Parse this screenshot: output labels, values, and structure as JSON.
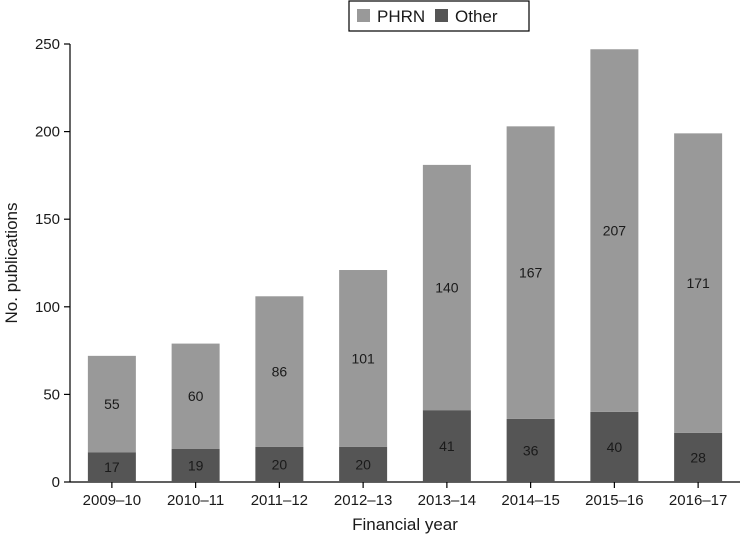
{
  "chart_data": {
    "type": "bar",
    "stacked": true,
    "title": "",
    "xlabel": "Financial year",
    "ylabel": "No. publications",
    "ylim": [
      0,
      250
    ],
    "yticks": [
      0,
      50,
      100,
      150,
      200,
      250
    ],
    "grid": false,
    "legend": "top-center",
    "categories": [
      "2009–10",
      "2010–11",
      "2011–12",
      "2012–13",
      "2013–14",
      "2014–15",
      "2015–16",
      "2016–17"
    ],
    "series": [
      {
        "name": "Other",
        "color": "#555555",
        "values": [
          17,
          19,
          20,
          20,
          41,
          36,
          40,
          28
        ]
      },
      {
        "name": "PHRN",
        "color": "#999999",
        "values": [
          55,
          60,
          86,
          101,
          140,
          167,
          207,
          171
        ]
      }
    ],
    "legend_order": [
      "PHRN",
      "Other"
    ]
  }
}
